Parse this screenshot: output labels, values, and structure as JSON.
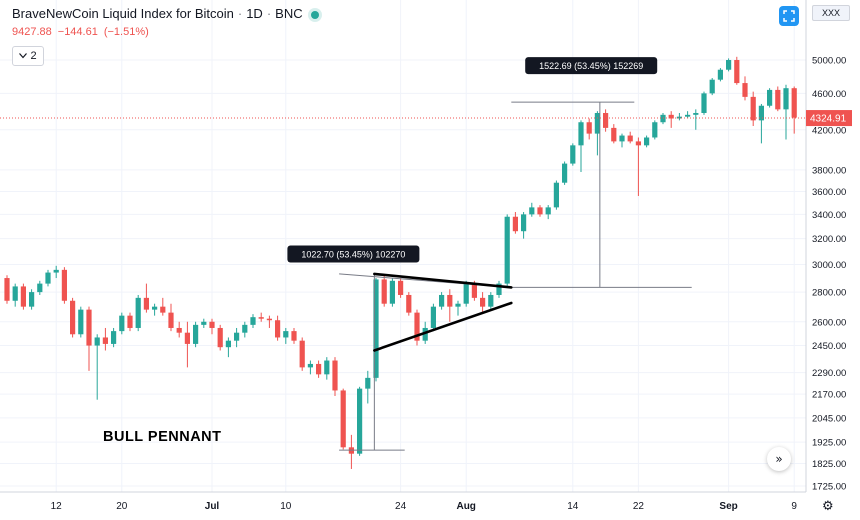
{
  "header": {
    "title": "BraveNewCoin Liquid Index for Bitcoin",
    "interval": "1D",
    "exchange": "BNC",
    "status_color": "#26a69a",
    "price": "9427.88",
    "change": "−144.61",
    "change_pct": "(−1.51%)",
    "indicator_count": "2",
    "indicator_icon": "chevron-down-icon"
  },
  "toolbar": {
    "button_icon": "fullscreen-icon",
    "symbol_badge": "XXX",
    "scroll_icon": "double-chevron-right-icon",
    "settings_icon": "gear-icon"
  },
  "colors": {
    "up": "#26a69a",
    "down": "#ef5350",
    "price_tag": "#ef5350",
    "accent": "#2196f3"
  },
  "chart_data": {
    "type": "candlestick",
    "annotation_text": "BULL PENNANT",
    "price_axis_labels": [
      "5000.00",
      "4600.00",
      "4200.00",
      "3800.00",
      "3600.00",
      "3400.00",
      "3200.00",
      "3000.00",
      "2800.00",
      "2600.00",
      "2450.00",
      "2290.00",
      "2170.00",
      "2045.00",
      "1925.00",
      "1825.00",
      "1725.00"
    ],
    "price_axis_values": [
      5000,
      4600,
      4200,
      3800,
      3600,
      3400,
      3200,
      3000,
      2800,
      2600,
      2450,
      2290,
      2170,
      2045,
      1925,
      1825,
      1725
    ],
    "last_price": "4324.91",
    "last_price_value": 4324.91,
    "time_axis": [
      {
        "label": "12",
        "index": 6
      },
      {
        "label": "20",
        "index": 14
      },
      {
        "label": "Jul",
        "index": 25
      },
      {
        "label": "10",
        "index": 34
      },
      {
        "label": "24",
        "index": 48
      },
      {
        "label": "Aug",
        "index": 56
      },
      {
        "label": "14",
        "index": 69
      },
      {
        "label": "22",
        "index": 77
      },
      {
        "label": "Sep",
        "index": 88
      },
      {
        "label": "9",
        "index": 96
      }
    ],
    "measure_labels": [
      {
        "text": "1022.70 (53.45%) 102270",
        "index": 42,
        "price": 3080
      },
      {
        "text": "1522.69 (53.45%) 152269",
        "index": 71,
        "price": 4930
      }
    ],
    "candles": [
      {
        "o": 2900,
        "h": 2920,
        "l": 2720,
        "c": 2740
      },
      {
        "o": 2740,
        "h": 2860,
        "l": 2700,
        "c": 2840
      },
      {
        "o": 2840,
        "h": 2860,
        "l": 2680,
        "c": 2700
      },
      {
        "o": 2700,
        "h": 2820,
        "l": 2680,
        "c": 2800
      },
      {
        "o": 2800,
        "h": 2880,
        "l": 2780,
        "c": 2860
      },
      {
        "o": 2860,
        "h": 2960,
        "l": 2840,
        "c": 2940
      },
      {
        "o": 2940,
        "h": 2990,
        "l": 2900,
        "c": 2960
      },
      {
        "o": 2960,
        "h": 2980,
        "l": 2720,
        "c": 2740
      },
      {
        "o": 2740,
        "h": 2760,
        "l": 2500,
        "c": 2520
      },
      {
        "o": 2520,
        "h": 2700,
        "l": 2500,
        "c": 2680
      },
      {
        "o": 2680,
        "h": 2700,
        "l": 2300,
        "c": 2450
      },
      {
        "o": 2450,
        "h": 2520,
        "l": 2140,
        "c": 2500
      },
      {
        "o": 2500,
        "h": 2560,
        "l": 2420,
        "c": 2460
      },
      {
        "o": 2460,
        "h": 2560,
        "l": 2440,
        "c": 2540
      },
      {
        "o": 2540,
        "h": 2660,
        "l": 2520,
        "c": 2640
      },
      {
        "o": 2640,
        "h": 2660,
        "l": 2540,
        "c": 2560
      },
      {
        "o": 2560,
        "h": 2780,
        "l": 2540,
        "c": 2760
      },
      {
        "o": 2760,
        "h": 2860,
        "l": 2660,
        "c": 2680
      },
      {
        "o": 2680,
        "h": 2720,
        "l": 2640,
        "c": 2700
      },
      {
        "o": 2700,
        "h": 2760,
        "l": 2640,
        "c": 2660
      },
      {
        "o": 2660,
        "h": 2720,
        "l": 2540,
        "c": 2560
      },
      {
        "o": 2560,
        "h": 2600,
        "l": 2500,
        "c": 2530
      },
      {
        "o": 2530,
        "h": 2600,
        "l": 2320,
        "c": 2460
      },
      {
        "o": 2460,
        "h": 2600,
        "l": 2440,
        "c": 2580
      },
      {
        "o": 2580,
        "h": 2620,
        "l": 2560,
        "c": 2600
      },
      {
        "o": 2600,
        "h": 2620,
        "l": 2520,
        "c": 2560
      },
      {
        "o": 2560,
        "h": 2580,
        "l": 2420,
        "c": 2440
      },
      {
        "o": 2440,
        "h": 2500,
        "l": 2380,
        "c": 2480
      },
      {
        "o": 2480,
        "h": 2560,
        "l": 2440,
        "c": 2530
      },
      {
        "o": 2530,
        "h": 2600,
        "l": 2500,
        "c": 2580
      },
      {
        "o": 2580,
        "h": 2650,
        "l": 2560,
        "c": 2630
      },
      {
        "o": 2630,
        "h": 2660,
        "l": 2600,
        "c": 2620
      },
      {
        "o": 2620,
        "h": 2640,
        "l": 2560,
        "c": 2610
      },
      {
        "o": 2610,
        "h": 2640,
        "l": 2480,
        "c": 2500
      },
      {
        "o": 2500,
        "h": 2560,
        "l": 2460,
        "c": 2540
      },
      {
        "o": 2540,
        "h": 2560,
        "l": 2460,
        "c": 2480
      },
      {
        "o": 2480,
        "h": 2500,
        "l": 2300,
        "c": 2320
      },
      {
        "o": 2320,
        "h": 2360,
        "l": 2280,
        "c": 2340
      },
      {
        "o": 2340,
        "h": 2360,
        "l": 2260,
        "c": 2280
      },
      {
        "o": 2280,
        "h": 2380,
        "l": 2250,
        "c": 2360
      },
      {
        "o": 2360,
        "h": 2380,
        "l": 2160,
        "c": 2190
      },
      {
        "o": 2190,
        "h": 2200,
        "l": 1890,
        "c": 1900
      },
      {
        "o": 1900,
        "h": 1960,
        "l": 1800,
        "c": 1870
      },
      {
        "o": 1870,
        "h": 2210,
        "l": 1860,
        "c": 2200
      },
      {
        "o": 2200,
        "h": 2300,
        "l": 2120,
        "c": 2260
      },
      {
        "o": 2260,
        "h": 2900,
        "l": 2240,
        "c": 2890
      },
      {
        "o": 2890,
        "h": 2920,
        "l": 2700,
        "c": 2720
      },
      {
        "o": 2720,
        "h": 2900,
        "l": 2700,
        "c": 2880
      },
      {
        "o": 2880,
        "h": 2900,
        "l": 2760,
        "c": 2780
      },
      {
        "o": 2780,
        "h": 2800,
        "l": 2640,
        "c": 2660
      },
      {
        "o": 2660,
        "h": 2680,
        "l": 2450,
        "c": 2480
      },
      {
        "o": 2480,
        "h": 2600,
        "l": 2460,
        "c": 2560
      },
      {
        "o": 2560,
        "h": 2720,
        "l": 2540,
        "c": 2700
      },
      {
        "o": 2700,
        "h": 2800,
        "l": 2680,
        "c": 2780
      },
      {
        "o": 2780,
        "h": 2820,
        "l": 2600,
        "c": 2700
      },
      {
        "o": 2700,
        "h": 2740,
        "l": 2640,
        "c": 2720
      },
      {
        "o": 2720,
        "h": 2880,
        "l": 2700,
        "c": 2860
      },
      {
        "o": 2860,
        "h": 2880,
        "l": 2740,
        "c": 2760
      },
      {
        "o": 2760,
        "h": 2800,
        "l": 2660,
        "c": 2700
      },
      {
        "o": 2700,
        "h": 2800,
        "l": 2680,
        "c": 2780
      },
      {
        "o": 2780,
        "h": 2880,
        "l": 2760,
        "c": 2860
      },
      {
        "o": 2860,
        "h": 3400,
        "l": 2840,
        "c": 3380
      },
      {
        "o": 3380,
        "h": 3420,
        "l": 3240,
        "c": 3260
      },
      {
        "o": 3260,
        "h": 3420,
        "l": 3200,
        "c": 3400
      },
      {
        "o": 3400,
        "h": 3500,
        "l": 3380,
        "c": 3460
      },
      {
        "o": 3460,
        "h": 3480,
        "l": 3380,
        "c": 3400
      },
      {
        "o": 3400,
        "h": 3480,
        "l": 3360,
        "c": 3460
      },
      {
        "o": 3460,
        "h": 3700,
        "l": 3440,
        "c": 3680
      },
      {
        "o": 3680,
        "h": 3880,
        "l": 3660,
        "c": 3860
      },
      {
        "o": 3860,
        "h": 4060,
        "l": 3840,
        "c": 4040
      },
      {
        "o": 4040,
        "h": 4300,
        "l": 3780,
        "c": 4280
      },
      {
        "o": 4280,
        "h": 4320,
        "l": 4100,
        "c": 4160
      },
      {
        "o": 4160,
        "h": 4400,
        "l": 3940,
        "c": 4380
      },
      {
        "o": 4380,
        "h": 4420,
        "l": 4180,
        "c": 4220
      },
      {
        "o": 4220,
        "h": 4260,
        "l": 4060,
        "c": 4080
      },
      {
        "o": 4080,
        "h": 4160,
        "l": 4020,
        "c": 4140
      },
      {
        "o": 4140,
        "h": 4180,
        "l": 4060,
        "c": 4080
      },
      {
        "o": 4080,
        "h": 4120,
        "l": 3560,
        "c": 4040
      },
      {
        "o": 4040,
        "h": 4140,
        "l": 4020,
        "c": 4120
      },
      {
        "o": 4120,
        "h": 4300,
        "l": 4100,
        "c": 4280
      },
      {
        "o": 4280,
        "h": 4380,
        "l": 4260,
        "c": 4360
      },
      {
        "o": 4360,
        "h": 4400,
        "l": 4220,
        "c": 4320
      },
      {
        "o": 4320,
        "h": 4380,
        "l": 4300,
        "c": 4340
      },
      {
        "o": 4340,
        "h": 4400,
        "l": 4320,
        "c": 4360
      },
      {
        "o": 4360,
        "h": 4420,
        "l": 4200,
        "c": 4380
      },
      {
        "o": 4380,
        "h": 4620,
        "l": 4360,
        "c": 4600
      },
      {
        "o": 4600,
        "h": 4780,
        "l": 4580,
        "c": 4760
      },
      {
        "o": 4760,
        "h": 4900,
        "l": 4740,
        "c": 4880
      },
      {
        "o": 4880,
        "h": 5020,
        "l": 4860,
        "c": 5000
      },
      {
        "o": 5000,
        "h": 5040,
        "l": 4700,
        "c": 4720
      },
      {
        "o": 4720,
        "h": 4800,
        "l": 4520,
        "c": 4560
      },
      {
        "o": 4560,
        "h": 4620,
        "l": 4240,
        "c": 4300
      },
      {
        "o": 4300,
        "h": 4480,
        "l": 4060,
        "c": 4460
      },
      {
        "o": 4460,
        "h": 4660,
        "l": 4440,
        "c": 4640
      },
      {
        "o": 4640,
        "h": 4680,
        "l": 4400,
        "c": 4420
      },
      {
        "o": 4420,
        "h": 4700,
        "l": 4100,
        "c": 4660
      },
      {
        "o": 4660,
        "h": 4680,
        "l": 4160,
        "c": 4330
      }
    ]
  }
}
